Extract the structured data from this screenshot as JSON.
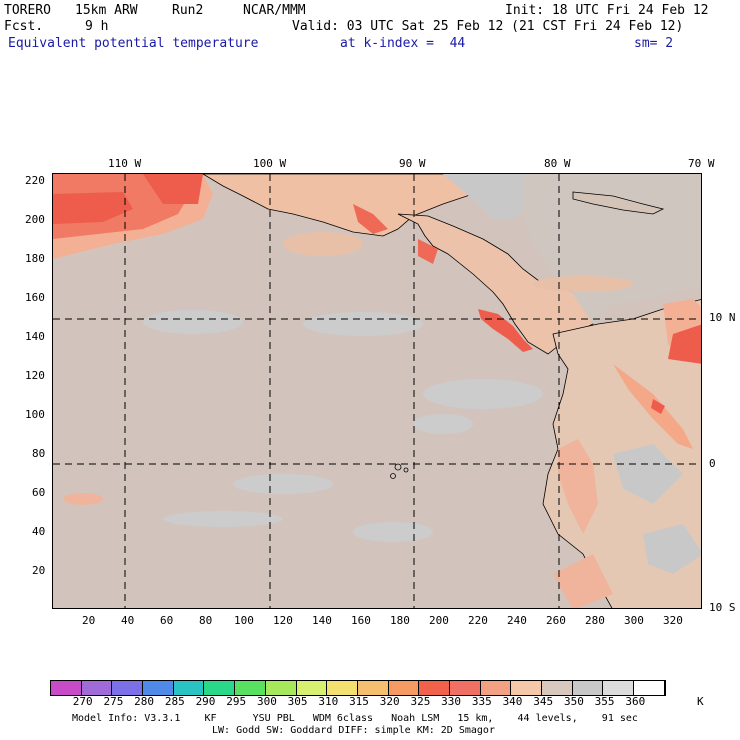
{
  "header": {
    "model": "TORERO",
    "resolution": "15km ARW",
    "run": "Run2",
    "org": "NCAR/MMM",
    "init": "Init: 18 UTC Fri 24 Feb 12",
    "fcst_label": "Fcst.",
    "fcst_value": "9 h",
    "valid": "Valid: 03 UTC Sat 25 Feb 12 (21 CST Fri 24 Feb 12)",
    "field": "Equivalent potential temperature",
    "level": "at k-index =  44",
    "smoothing": "sm= 2"
  },
  "map": {
    "top_lon_labels": [
      "110 W",
      "100 W",
      "90 W",
      "80 W",
      "70 W"
    ],
    "right_lat_labels": [
      "10 N",
      "0",
      "10 S"
    ],
    "y_axis_ticks": [
      "220",
      "200",
      "180",
      "160",
      "140",
      "120",
      "100",
      "80",
      "60",
      "40",
      "20"
    ],
    "x_axis_ticks": [
      "20",
      "40",
      "60",
      "80",
      "100",
      "120",
      "140",
      "160",
      "180",
      "200",
      "220",
      "240",
      "260",
      "280",
      "300",
      "320"
    ]
  },
  "colorbar": {
    "labels": [
      "270",
      "275",
      "280",
      "285",
      "290",
      "295",
      "300",
      "305",
      "310",
      "315",
      "320",
      "325",
      "330",
      "335",
      "340",
      "345",
      "350",
      "355",
      "360"
    ],
    "unit": "K",
    "colors": [
      "#c84cc8",
      "#a06ad8",
      "#7c70e8",
      "#4f8ae8",
      "#2ac4c4",
      "#2ad88a",
      "#58e060",
      "#a8e85c",
      "#d8f070",
      "#f4e070",
      "#f4c070",
      "#f49a62",
      "#f0624c",
      "#f07064",
      "#f4a082",
      "#f4c8a8",
      "#d8c8be",
      "#c8c8c8",
      "#dcdcdc",
      "#ffffff"
    ]
  },
  "footer": {
    "line1": "Model Info: V3.3.1    KF      YSU PBL   WDM 6class   Noah LSM   15 km,    44 levels,    91 sec",
    "line2": "LW: Godd SW: Goddard DIFF: simple KM: 2D Smagor"
  }
}
